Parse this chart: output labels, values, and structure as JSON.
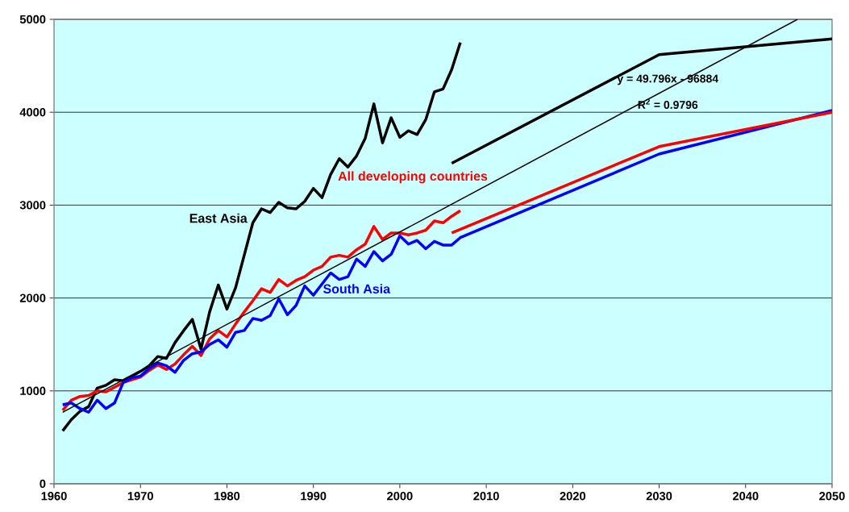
{
  "chart_data": {
    "type": "line",
    "xlim": [
      1960,
      2050
    ],
    "ylim": [
      0,
      5000
    ],
    "xticks": [
      1960,
      1970,
      1980,
      1990,
      2000,
      2010,
      2020,
      2030,
      2040,
      2050
    ],
    "yticks": [
      0,
      1000,
      2000,
      3000,
      4000,
      5000
    ],
    "grid": "y",
    "annotations": [
      "y = 49.796x - 96884",
      "R$^{2}$ = 0.9796"
    ],
    "series": [
      {
        "name": "East Asia",
        "color": "#000000",
        "x": [
          1961,
          1962,
          1963,
          1964,
          1965,
          1966,
          1967,
          1968,
          1969,
          1970,
          1971,
          1972,
          1973,
          1974,
          1975,
          1976,
          1977,
          1978,
          1979,
          1980,
          1981,
          1982,
          1983,
          1984,
          1985,
          1986,
          1987,
          1988,
          1989,
          1990,
          1991,
          1992,
          1993,
          1994,
          1995,
          1996,
          1997,
          1998,
          1999,
          2000,
          2001,
          2002,
          2003,
          2004,
          2005,
          2006,
          2007
        ],
        "values": [
          570,
          690,
          780,
          830,
          1030,
          1060,
          1120,
          1110,
          1160,
          1210,
          1270,
          1370,
          1350,
          1520,
          1650,
          1770,
          1450,
          1850,
          2140,
          1880,
          2110,
          2460,
          2810,
          2960,
          2920,
          3030,
          2970,
          2960,
          3040,
          3180,
          3080,
          3330,
          3500,
          3410,
          3530,
          3720,
          4090,
          3670,
          3940,
          3730,
          3800,
          3760,
          3920,
          4220,
          4250,
          4460,
          4750
        ]
      },
      {
        "name": "All developing countries",
        "color": "#ff0000",
        "x": [
          1961,
          1962,
          1963,
          1964,
          1965,
          1966,
          1967,
          1968,
          1969,
          1970,
          1971,
          1972,
          1973,
          1974,
          1975,
          1976,
          1977,
          1978,
          1979,
          1980,
          1981,
          1982,
          1983,
          1984,
          1985,
          1986,
          1987,
          1988,
          1989,
          1990,
          1991,
          1992,
          1993,
          1994,
          1995,
          1996,
          1997,
          1998,
          1999,
          2000,
          2001,
          2002,
          2003,
          2004,
          2005,
          2006,
          2007
        ],
        "values": [
          790,
          900,
          940,
          950,
          1000,
          990,
          1040,
          1090,
          1120,
          1150,
          1220,
          1280,
          1230,
          1290,
          1390,
          1480,
          1380,
          1560,
          1650,
          1580,
          1720,
          1850,
          1970,
          2100,
          2060,
          2200,
          2130,
          2190,
          2230,
          2300,
          2340,
          2440,
          2460,
          2440,
          2520,
          2580,
          2770,
          2630,
          2700,
          2700,
          2680,
          2700,
          2730,
          2830,
          2810,
          2880,
          2940
        ]
      },
      {
        "name": "South Asia",
        "color": "#0000ff",
        "x": [
          1961,
          1962,
          1963,
          1964,
          1965,
          1966,
          1967,
          1968,
          1969,
          1970,
          1971,
          1972,
          1973,
          1974,
          1975,
          1976,
          1977,
          1978,
          1979,
          1980,
          1981,
          1982,
          1983,
          1984,
          1985,
          1986,
          1987,
          1988,
          1989,
          1990,
          1991,
          1992,
          1993,
          1994,
          1995,
          1996,
          1997,
          1998,
          1999,
          2000,
          2001,
          2002,
          2003,
          2004,
          2005,
          2006,
          2007,
          2030,
          2050
        ],
        "values": [
          850,
          870,
          810,
          770,
          900,
          810,
          870,
          1090,
          1140,
          1160,
          1240,
          1300,
          1270,
          1200,
          1330,
          1400,
          1420,
          1500,
          1550,
          1470,
          1630,
          1650,
          1780,
          1760,
          1810,
          1990,
          1820,
          1920,
          2130,
          2030,
          2150,
          2270,
          2200,
          2230,
          2420,
          2340,
          2500,
          2400,
          2470,
          2670,
          2580,
          2620,
          2530,
          2610,
          2570,
          2570,
          2650,
          3550,
          4020
        ]
      },
      {
        "color": "#000000",
        "x": [
          2006,
          2030,
          2050
        ],
        "values": [
          3450,
          4620,
          4790
        ]
      },
      {
        "color": "#ff0000",
        "x": [
          2006,
          2030,
          2050
        ],
        "values": [
          2700,
          3630,
          4000
        ]
      },
      {
        "color": "#000000",
        "x": [
          1961,
          2046
        ],
        "values": [
          770,
          5000
        ]
      }
    ]
  }
}
